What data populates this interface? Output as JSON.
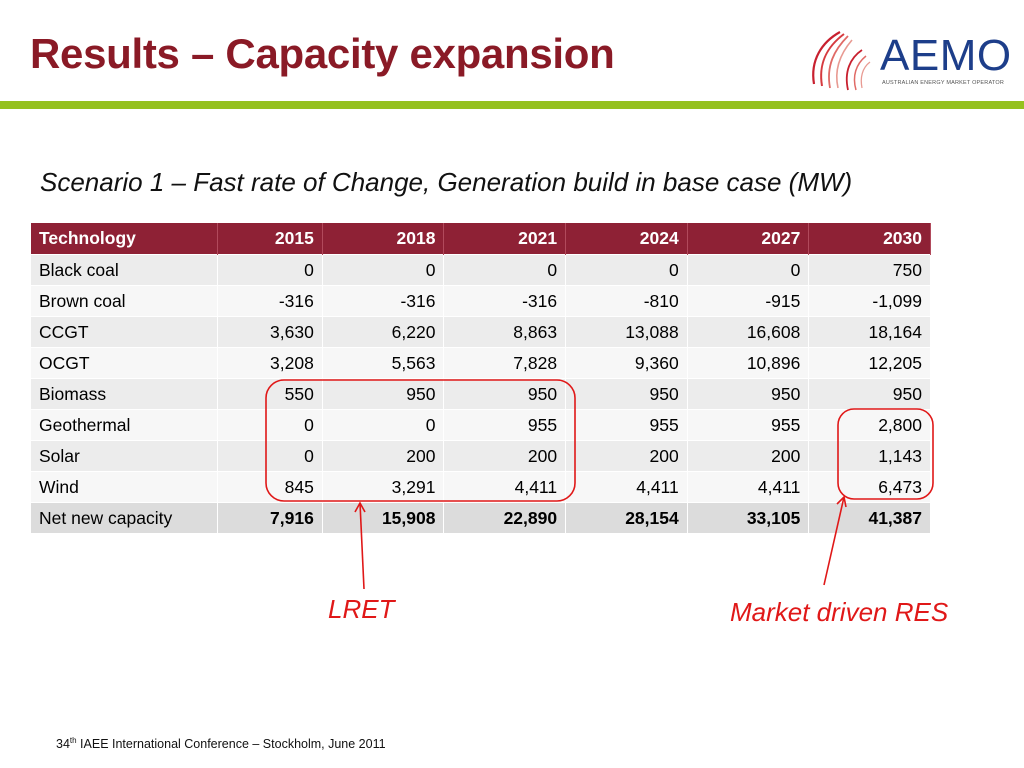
{
  "slide": {
    "title": "Results – Capacity expansion",
    "subtitle": "Scenario 1 – Fast rate of Change, Generation build in base case (MW)"
  },
  "logo": {
    "word": "AEMO",
    "tagline": "AUSTRALIAN ENERGY MARKET OPERATOR",
    "colors": {
      "word": "#1d3e8a",
      "mark": "#c8202f"
    }
  },
  "table": {
    "headers": [
      "Technology",
      "2015",
      "2018",
      "2021",
      "2024",
      "2027",
      "2030"
    ],
    "rows": [
      [
        "Black coal",
        "0",
        "0",
        "0",
        "0",
        "0",
        "750"
      ],
      [
        "Brown coal",
        "-316",
        "-316",
        "-316",
        "-810",
        "-915",
        "-1,099"
      ],
      [
        "CCGT",
        "3,630",
        "6,220",
        "8,863",
        "13,088",
        "16,608",
        "18,164"
      ],
      [
        "OCGT",
        "3,208",
        "5,563",
        "7,828",
        "9,360",
        "10,896",
        "12,205"
      ],
      [
        "Biomass",
        "550",
        "950",
        "950",
        "950",
        "950",
        "950"
      ],
      [
        "Geothermal",
        "0",
        "0",
        "955",
        "955",
        "955",
        "2,800"
      ],
      [
        "Solar",
        "0",
        "200",
        "200",
        "200",
        "200",
        "1,143"
      ],
      [
        "Wind",
        "845",
        "3,291",
        "4,411",
        "4,411",
        "4,411",
        "6,473"
      ],
      [
        "Net new capacity",
        "7,916",
        "15,908",
        "22,890",
        "28,154",
        "33,105",
        "41,387"
      ]
    ]
  },
  "annotations": {
    "lret": "LRET",
    "market": "Market driven RES"
  },
  "footer": {
    "ordinal": "34",
    "ordinal_suffix": "th",
    "text": " IAEE International Conference – Stockholm, June 2011"
  },
  "colors": {
    "title": "#8a1a26",
    "header_bg": "#8e2135",
    "accent_bar": "#95c11f",
    "annotation": "#e01818"
  }
}
